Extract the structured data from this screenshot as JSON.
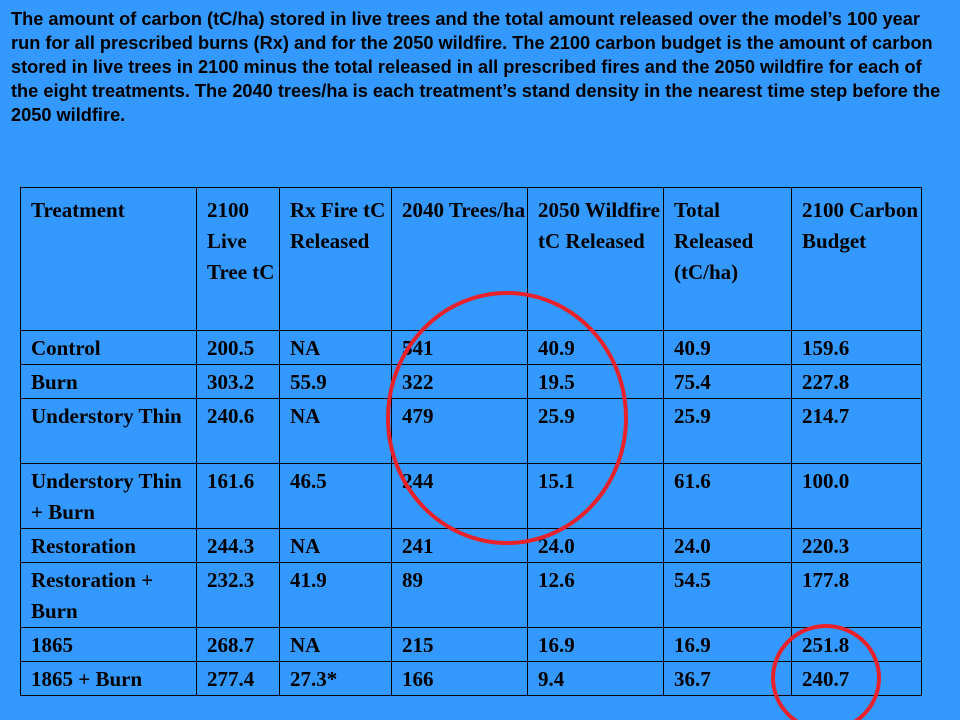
{
  "caption": "The amount of carbon (tC/ha) stored in live trees and the total amount released over the model’s 100 year run for  all prescribed burns (Rx) and for the 2050 wildfire.  The 2100 carbon budget is the amount of carbon stored in live trees in 2100 minus the total released in all prescribed fires and the 2050 wildfire for each of the eight treatments.  The 2040 trees/ha is each treatment’s stand density in the nearest time step before the 2050 wildfire.",
  "table": {
    "headers": [
      "Treatment",
      "2100 Live Tree tC",
      "Rx Fire tC Released",
      "2040 Trees/ha",
      "2050 Wildfire tC Released",
      "Total Released (tC/ha)",
      "2100 Carbon Budget"
    ],
    "rows": [
      [
        "Control",
        "200.5",
        "NA",
        "541",
        "40.9",
        "40.9",
        "159.6"
      ],
      [
        "Burn",
        "303.2",
        "55.9",
        "322",
        "19.5",
        "75.4",
        "227.8"
      ],
      [
        "Understory Thin",
        "240.6",
        "NA",
        "479",
        "25.9",
        "25.9",
        "214.7"
      ],
      [
        "Understory Thin + Burn",
        "161.6",
        "46.5",
        "244",
        "15.1",
        "61.6",
        "100.0"
      ],
      [
        "Restoration",
        "244.3",
        "NA",
        "241",
        "24.0",
        "24.0",
        "220.3"
      ],
      [
        "Restoration + Burn",
        "232.3",
        "41.9",
        "89",
        "12.6",
        "54.5",
        "177.8"
      ],
      [
        "1865",
        "268.7",
        "NA",
        "215",
        "16.9",
        "16.9",
        "251.8"
      ],
      [
        "1865 + Burn",
        "277.4",
        "27.3*",
        "166",
        "9.4",
        "36.7",
        "240.7"
      ]
    ]
  },
  "colors": {
    "background": "#3399ff",
    "highlight_circle": "#e8222a"
  }
}
